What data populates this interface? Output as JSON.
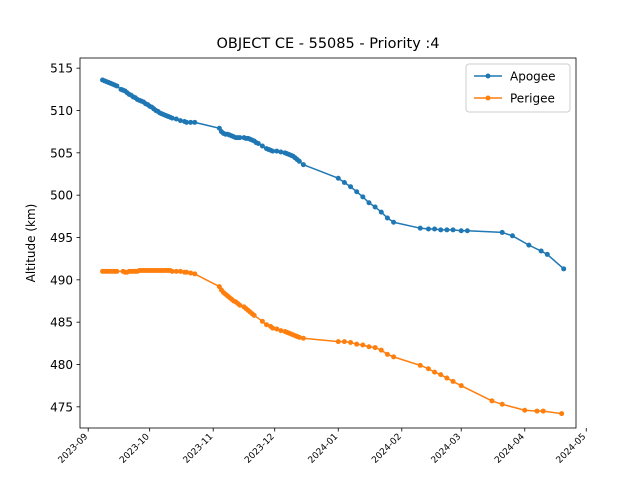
{
  "chart_data": {
    "type": "line",
    "title": "OBJECT CE - 55085 - Priority :4",
    "xlabel": "",
    "ylabel": "Altitude (km)",
    "xlim": [
      "2023-08-28",
      "2024-04-26"
    ],
    "ylim": [
      472.5,
      516.2
    ],
    "x_ticks": [
      "2023-09",
      "2023-10",
      "2023-11",
      "2023-12",
      "2024-01",
      "2024-02",
      "2024-03",
      "2024-04",
      "2024-05"
    ],
    "y_ticks": [
      475,
      480,
      485,
      490,
      495,
      500,
      505,
      510,
      515
    ],
    "legend_position": "top-right",
    "grid": false,
    "series": [
      {
        "name": "Apogee",
        "color": "#1f77b4",
        "points": [
          [
            "2023-09-08",
            513.6
          ],
          [
            "2023-09-09",
            513.5
          ],
          [
            "2023-09-10",
            513.4
          ],
          [
            "2023-09-11",
            513.3
          ],
          [
            "2023-09-12",
            513.2
          ],
          [
            "2023-09-13",
            513.1
          ],
          [
            "2023-09-14",
            513.0
          ],
          [
            "2023-09-15",
            512.9
          ],
          [
            "2023-09-17",
            512.5
          ],
          [
            "2023-09-18",
            512.4
          ],
          [
            "2023-09-19",
            512.3
          ],
          [
            "2023-09-20",
            512.1
          ],
          [
            "2023-09-21",
            511.9
          ],
          [
            "2023-09-22",
            511.8
          ],
          [
            "2023-09-23",
            511.6
          ],
          [
            "2023-09-24",
            511.5
          ],
          [
            "2023-09-25",
            511.3
          ],
          [
            "2023-09-26",
            511.2
          ],
          [
            "2023-09-27",
            511.1
          ],
          [
            "2023-09-28",
            511.0
          ],
          [
            "2023-09-29",
            510.8
          ],
          [
            "2023-09-30",
            510.7
          ],
          [
            "2023-10-01",
            510.5
          ],
          [
            "2023-10-02",
            510.4
          ],
          [
            "2023-10-03",
            510.2
          ],
          [
            "2023-10-04",
            510.0
          ],
          [
            "2023-10-05",
            509.9
          ],
          [
            "2023-10-06",
            509.7
          ],
          [
            "2023-10-07",
            509.6
          ],
          [
            "2023-10-08",
            509.5
          ],
          [
            "2023-10-09",
            509.4
          ],
          [
            "2023-10-10",
            509.3
          ],
          [
            "2023-10-11",
            509.2
          ],
          [
            "2023-10-12",
            509.1
          ],
          [
            "2023-10-14",
            509.0
          ],
          [
            "2023-10-16",
            508.8
          ],
          [
            "2023-10-18",
            508.7
          ],
          [
            "2023-10-19",
            508.6
          ],
          [
            "2023-10-21",
            508.6
          ],
          [
            "2023-10-23",
            508.6
          ],
          [
            "2023-11-04",
            507.9
          ],
          [
            "2023-11-05",
            507.5
          ],
          [
            "2023-11-06",
            507.3
          ],
          [
            "2023-11-07",
            507.2
          ],
          [
            "2023-11-08",
            507.2
          ],
          [
            "2023-11-09",
            507.1
          ],
          [
            "2023-11-10",
            507.0
          ],
          [
            "2023-11-11",
            506.9
          ],
          [
            "2023-11-12",
            506.8
          ],
          [
            "2023-11-13",
            506.8
          ],
          [
            "2023-11-14",
            506.8
          ],
          [
            "2023-11-16",
            506.8
          ],
          [
            "2023-11-17",
            506.7
          ],
          [
            "2023-11-18",
            506.7
          ],
          [
            "2023-11-19",
            506.6
          ],
          [
            "2023-11-20",
            506.5
          ],
          [
            "2023-11-21",
            506.4
          ],
          [
            "2023-11-22",
            506.2
          ],
          [
            "2023-11-23",
            506.1
          ],
          [
            "2023-11-25",
            505.8
          ],
          [
            "2023-11-27",
            505.5
          ],
          [
            "2023-11-28",
            505.4
          ],
          [
            "2023-11-29",
            505.3
          ],
          [
            "2023-11-30",
            505.2
          ],
          [
            "2023-12-02",
            505.2
          ],
          [
            "2023-12-04",
            505.1
          ],
          [
            "2023-12-06",
            505.0
          ],
          [
            "2023-12-07",
            504.9
          ],
          [
            "2023-12-08",
            504.8
          ],
          [
            "2023-12-09",
            504.7
          ],
          [
            "2023-12-10",
            504.6
          ],
          [
            "2023-12-11",
            504.4
          ],
          [
            "2023-12-12",
            504.2
          ],
          [
            "2023-12-13",
            504.0
          ],
          [
            "2023-12-15",
            503.6
          ],
          [
            "2024-01-01",
            502.0
          ],
          [
            "2024-01-04",
            501.5
          ],
          [
            "2024-01-07",
            501.0
          ],
          [
            "2024-01-10",
            500.4
          ],
          [
            "2024-01-13",
            499.8
          ],
          [
            "2024-01-16",
            499.1
          ],
          [
            "2024-01-19",
            498.6
          ],
          [
            "2024-01-22",
            498.0
          ],
          [
            "2024-01-25",
            497.3
          ],
          [
            "2024-01-28",
            496.8
          ],
          [
            "2024-02-10",
            496.1
          ],
          [
            "2024-02-14",
            496.0
          ],
          [
            "2024-02-17",
            496.0
          ],
          [
            "2024-02-20",
            495.9
          ],
          [
            "2024-02-23",
            495.9
          ],
          [
            "2024-02-26",
            495.9
          ],
          [
            "2024-03-01",
            495.8
          ],
          [
            "2024-03-04",
            495.8
          ],
          [
            "2024-03-21",
            495.6
          ],
          [
            "2024-03-26",
            495.2
          ],
          [
            "2024-04-03",
            494.1
          ],
          [
            "2024-04-09",
            493.4
          ],
          [
            "2024-04-12",
            493.0
          ],
          [
            "2024-04-20",
            491.3
          ]
        ]
      },
      {
        "name": "Perigee",
        "color": "#ff7f0e",
        "points": [
          [
            "2023-09-08",
            491.0
          ],
          [
            "2023-09-09",
            491.0
          ],
          [
            "2023-09-10",
            491.0
          ],
          [
            "2023-09-11",
            491.0
          ],
          [
            "2023-09-12",
            491.0
          ],
          [
            "2023-09-13",
            491.0
          ],
          [
            "2023-09-14",
            491.0
          ],
          [
            "2023-09-15",
            491.0
          ],
          [
            "2023-09-18",
            491.0
          ],
          [
            "2023-09-19",
            490.9
          ],
          [
            "2023-09-20",
            490.9
          ],
          [
            "2023-09-21",
            491.0
          ],
          [
            "2023-09-22",
            491.0
          ],
          [
            "2023-09-23",
            491.0
          ],
          [
            "2023-09-24",
            491.0
          ],
          [
            "2023-09-25",
            491.0
          ],
          [
            "2023-09-26",
            491.1
          ],
          [
            "2023-09-27",
            491.1
          ],
          [
            "2023-09-28",
            491.1
          ],
          [
            "2023-09-29",
            491.1
          ],
          [
            "2023-09-30",
            491.1
          ],
          [
            "2023-10-01",
            491.1
          ],
          [
            "2023-10-02",
            491.1
          ],
          [
            "2023-10-03",
            491.1
          ],
          [
            "2023-10-04",
            491.1
          ],
          [
            "2023-10-05",
            491.1
          ],
          [
            "2023-10-06",
            491.1
          ],
          [
            "2023-10-07",
            491.1
          ],
          [
            "2023-10-08",
            491.1
          ],
          [
            "2023-10-09",
            491.1
          ],
          [
            "2023-10-10",
            491.1
          ],
          [
            "2023-10-11",
            491.1
          ],
          [
            "2023-10-12",
            491.0
          ],
          [
            "2023-10-14",
            491.0
          ],
          [
            "2023-10-16",
            491.0
          ],
          [
            "2023-10-18",
            490.9
          ],
          [
            "2023-10-19",
            490.9
          ],
          [
            "2023-10-21",
            490.8
          ],
          [
            "2023-10-23",
            490.7
          ],
          [
            "2023-11-04",
            489.2
          ],
          [
            "2023-11-05",
            488.8
          ],
          [
            "2023-11-06",
            488.5
          ],
          [
            "2023-11-07",
            488.3
          ],
          [
            "2023-11-08",
            488.1
          ],
          [
            "2023-11-09",
            487.9
          ],
          [
            "2023-11-10",
            487.7
          ],
          [
            "2023-11-11",
            487.5
          ],
          [
            "2023-11-12",
            487.4
          ],
          [
            "2023-11-13",
            487.2
          ],
          [
            "2023-11-14",
            487.0
          ],
          [
            "2023-11-16",
            486.8
          ],
          [
            "2023-11-17",
            486.6
          ],
          [
            "2023-11-18",
            486.4
          ],
          [
            "2023-11-19",
            486.2
          ],
          [
            "2023-11-20",
            486.0
          ],
          [
            "2023-11-21",
            485.8
          ],
          [
            "2023-11-25",
            485.1
          ],
          [
            "2023-11-27",
            484.7
          ],
          [
            "2023-11-29",
            484.5
          ],
          [
            "2023-11-30",
            484.3
          ],
          [
            "2023-12-02",
            484.2
          ],
          [
            "2023-12-04",
            484.0
          ],
          [
            "2023-12-06",
            483.9
          ],
          [
            "2023-12-07",
            483.8
          ],
          [
            "2023-12-08",
            483.7
          ],
          [
            "2023-12-09",
            483.6
          ],
          [
            "2023-12-10",
            483.5
          ],
          [
            "2023-12-11",
            483.4
          ],
          [
            "2023-12-12",
            483.3
          ],
          [
            "2023-12-13",
            483.2
          ],
          [
            "2023-12-15",
            483.1
          ],
          [
            "2024-01-01",
            482.7
          ],
          [
            "2024-01-04",
            482.7
          ],
          [
            "2024-01-07",
            482.6
          ],
          [
            "2024-01-10",
            482.4
          ],
          [
            "2024-01-13",
            482.3
          ],
          [
            "2024-01-16",
            482.1
          ],
          [
            "2024-01-19",
            482.0
          ],
          [
            "2024-01-22",
            481.7
          ],
          [
            "2024-01-25",
            481.2
          ],
          [
            "2024-01-28",
            480.9
          ],
          [
            "2024-02-10",
            479.9
          ],
          [
            "2024-02-14",
            479.5
          ],
          [
            "2024-02-17",
            479.1
          ],
          [
            "2024-02-20",
            478.8
          ],
          [
            "2024-02-23",
            478.4
          ],
          [
            "2024-02-26",
            478.0
          ],
          [
            "2024-03-01",
            477.5
          ],
          [
            "2024-03-16",
            475.7
          ],
          [
            "2024-03-21",
            475.3
          ],
          [
            "2024-04-01",
            474.6
          ],
          [
            "2024-04-07",
            474.5
          ],
          [
            "2024-04-10",
            474.5
          ],
          [
            "2024-04-19",
            474.2
          ]
        ]
      }
    ]
  }
}
